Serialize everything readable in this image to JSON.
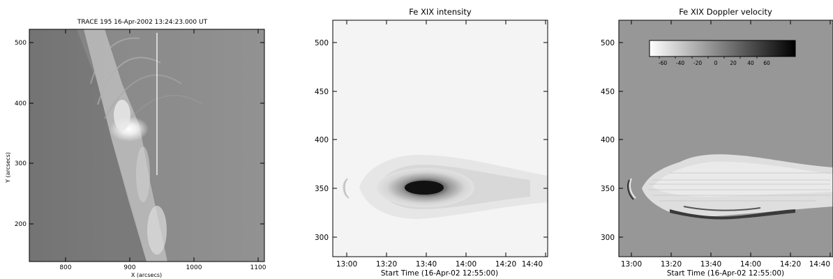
{
  "panels": [
    {
      "title": "TRACE 195 16-Apr-2002 13:24:23.000 UT",
      "xlabel": "X (arcsecs)",
      "ylabel": "Y (arcsecs)",
      "xticks": [
        "800",
        "900",
        "1000",
        "1100"
      ],
      "yticks": [
        "200",
        "300",
        "400",
        "500"
      ]
    },
    {
      "title": "Fe XIX intensity",
      "xlabel": "Start Time (16-Apr-02 12:55:00)",
      "xticks": [
        "13:00",
        "13:20",
        "13:40",
        "14:00",
        "14:20",
        "14:40"
      ],
      "yticks": [
        "300",
        "350",
        "400",
        "450",
        "500"
      ]
    },
    {
      "title": "Fe XIX Doppler velocity",
      "xlabel": "Start Time (16-Apr-02 12:55:00)",
      "xticks": [
        "13:00",
        "13:20",
        "13:40",
        "14:00",
        "14:20",
        "14:40"
      ],
      "yticks": [
        "300",
        "350",
        "400",
        "450",
        "500"
      ],
      "colorbar_ticks": [
        "-60",
        "-40",
        "-20",
        "0",
        "20",
        "40",
        "60"
      ]
    }
  ]
}
